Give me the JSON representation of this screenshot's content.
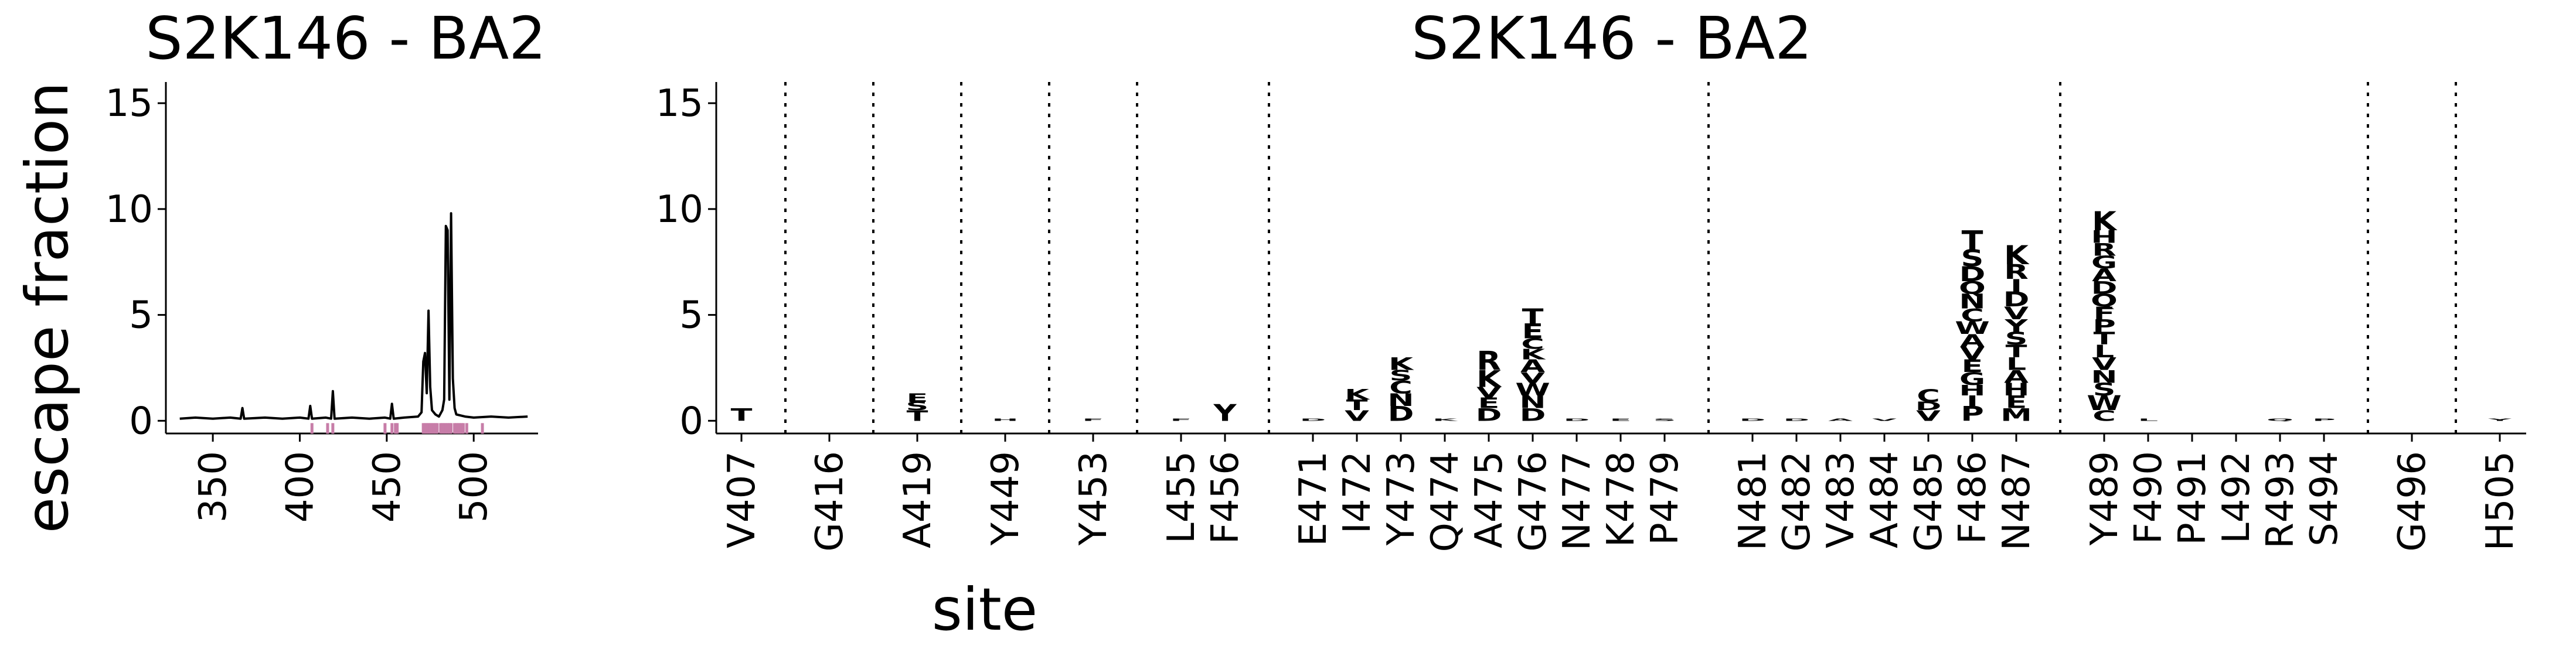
{
  "chart_data": [
    {
      "type": "line",
      "title": "S2K146 - BA2",
      "ylabel": "escape fraction",
      "xlabel": "",
      "xlim": [
        323,
        537
      ],
      "ylim": [
        -0.6,
        16
      ],
      "xticks": [
        350,
        400,
        450,
        500
      ],
      "yticks": [
        0,
        5,
        10,
        15
      ],
      "grid": false,
      "line_color": "#000000",
      "highlight_color": "#c77da8",
      "series": [
        {
          "points": [
            [
              331,
              0.1
            ],
            [
              340,
              0.15
            ],
            [
              350,
              0.1
            ],
            [
              360,
              0.15
            ],
            [
              366,
              0.1
            ],
            [
              367,
              0.6
            ],
            [
              368,
              0.1
            ],
            [
              380,
              0.15
            ],
            [
              390,
              0.1
            ],
            [
              400,
              0.15
            ],
            [
              405,
              0.1
            ],
            [
              406,
              0.7
            ],
            [
              407,
              0.1
            ],
            [
              415,
              0.15
            ],
            [
              418,
              0.1
            ],
            [
              419,
              1.4
            ],
            [
              420,
              0.1
            ],
            [
              430,
              0.15
            ],
            [
              440,
              0.1
            ],
            [
              449,
              0.15
            ],
            [
              452,
              0.1
            ],
            [
              453,
              0.8
            ],
            [
              454,
              0.1
            ],
            [
              460,
              0.15
            ],
            [
              468,
              0.2
            ],
            [
              470,
              0.4
            ],
            [
              471,
              2.8
            ],
            [
              472,
              3.2
            ],
            [
              473,
              1.3
            ],
            [
              474,
              5.2
            ],
            [
              475,
              1.6
            ],
            [
              476,
              0.5
            ],
            [
              478,
              0.3
            ],
            [
              480,
              0.2
            ],
            [
              482,
              0.5
            ],
            [
              483,
              1.0
            ],
            [
              484,
              9.2
            ],
            [
              485,
              9.0
            ],
            [
              486,
              1.0
            ],
            [
              487,
              9.8
            ],
            [
              488,
              2.0
            ],
            [
              489,
              0.6
            ],
            [
              490,
              0.3
            ],
            [
              495,
              0.2
            ],
            [
              500,
              0.15
            ],
            [
              510,
              0.2
            ],
            [
              520,
              0.15
            ],
            [
              531,
              0.2
            ]
          ]
        }
      ],
      "highlighted_sites": [
        407,
        416,
        419,
        449,
        453,
        455,
        456,
        471,
        472,
        473,
        474,
        475,
        476,
        477,
        478,
        479,
        481,
        482,
        483,
        484,
        485,
        486,
        487,
        489,
        490,
        491,
        492,
        493,
        494,
        496,
        505
      ]
    },
    {
      "type": "logo",
      "title": "S2K146 - BA2",
      "xlabel": "site",
      "ylabel": "",
      "ylim": [
        -0.6,
        16
      ],
      "yticks": [
        0,
        5,
        10,
        15
      ],
      "grid": false,
      "categories": [
        "V407",
        "G416",
        "A419",
        "Y449",
        "Y453",
        "L455",
        "F456",
        "E471",
        "I472",
        "Y473",
        "Q474",
        "A475",
        "G476",
        "N477",
        "K478",
        "P479",
        "N481",
        "G482",
        "V483",
        "A484",
        "G485",
        "F486",
        "N487",
        "Y489",
        "F490",
        "P491",
        "L492",
        "R493",
        "S494",
        "G496",
        "H505"
      ],
      "separators_after": [
        "V407",
        "G416",
        "A419",
        "Y449",
        "Y453",
        "F456",
        "P479",
        "N487",
        "S494",
        "G496"
      ],
      "stacks": [
        {
          "site": "V407",
          "total": 0.6,
          "letters": [
            {
              "aa": "T",
              "h": 0.6,
              "color": "#fde3a0"
            }
          ]
        },
        {
          "site": "G416",
          "total": 0.0,
          "letters": []
        },
        {
          "site": "A419",
          "total": 1.3,
          "letters": [
            {
              "aa": "T",
              "h": 0.5,
              "color": "#fde3a0"
            },
            {
              "aa": "S",
              "h": 0.4,
              "color": "#fde3a0"
            },
            {
              "aa": "E",
              "h": 0.4,
              "color": "#fde3a0"
            }
          ]
        },
        {
          "site": "Y449",
          "total": 0.1,
          "letters": [
            {
              "aa": "H",
              "h": 0.1,
              "color": "#fde3a0"
            }
          ]
        },
        {
          "site": "Y453",
          "total": 0.1,
          "letters": [
            {
              "aa": "F",
              "h": 0.1,
              "color": "#e88a4a"
            }
          ]
        },
        {
          "site": "L455",
          "total": 0.1,
          "letters": [
            {
              "aa": "F",
              "h": 0.1,
              "color": "#f7c78a"
            }
          ]
        },
        {
          "site": "F456",
          "total": 0.8,
          "letters": [
            {
              "aa": "Y",
              "h": 0.8,
              "color": "#fde3a0"
            }
          ]
        },
        {
          "site": "E471",
          "total": 0.1,
          "letters": [
            {
              "aa": "D",
              "h": 0.1,
              "color": "#fde3a0"
            }
          ]
        },
        {
          "site": "I472",
          "total": 1.5,
          "letters": [
            {
              "aa": "V",
              "h": 0.5,
              "color": "#fde3a0"
            },
            {
              "aa": "T",
              "h": 0.5,
              "color": "#fde3a0"
            },
            {
              "aa": "K",
              "h": 0.5,
              "color": "#fde3a0"
            }
          ]
        },
        {
          "site": "Y473",
          "total": 3.0,
          "letters": [
            {
              "aa": "D",
              "h": 0.7,
              "color": "#fde3a0"
            },
            {
              "aa": "N",
              "h": 0.6,
              "color": "#fde3a0"
            },
            {
              "aa": "C",
              "h": 0.6,
              "color": "#fde3a0"
            },
            {
              "aa": "S",
              "h": 0.5,
              "color": "#fde3a0"
            },
            {
              "aa": "K",
              "h": 0.6,
              "color": "#fde3a0"
            }
          ]
        },
        {
          "site": "Q474",
          "total": 0.1,
          "letters": [
            {
              "aa": "K",
              "h": 0.1,
              "color": "#b2400f"
            }
          ]
        },
        {
          "site": "A475",
          "total": 3.3,
          "letters": [
            {
              "aa": "D",
              "h": 0.6,
              "color": "#fde3a0"
            },
            {
              "aa": "E",
              "h": 0.5,
              "color": "#fde3a0"
            },
            {
              "aa": "V",
              "h": 0.5,
              "color": "#fde3a0"
            },
            {
              "aa": "K",
              "h": 0.8,
              "color": "#e8832f"
            },
            {
              "aa": "R",
              "h": 0.9,
              "color": "#e8832f"
            }
          ]
        },
        {
          "site": "G476",
          "total": 5.3,
          "letters": [
            {
              "aa": "D",
              "h": 0.6,
              "color": "#fde3a0"
            },
            {
              "aa": "N",
              "h": 0.6,
              "color": "#fde3a0"
            },
            {
              "aa": "W",
              "h": 0.6,
              "color": "#fde3a0"
            },
            {
              "aa": "V",
              "h": 0.5,
              "color": "#fde3a0"
            },
            {
              "aa": "A",
              "h": 0.6,
              "color": "#fde3a0"
            },
            {
              "aa": "K",
              "h": 0.5,
              "color": "#fde3a0"
            },
            {
              "aa": "C",
              "h": 0.5,
              "color": "#fde3a0"
            },
            {
              "aa": "E",
              "h": 0.7,
              "color": "#fde3a0"
            },
            {
              "aa": "T",
              "h": 0.7,
              "color": "#f7c77a"
            }
          ]
        },
        {
          "site": "N477",
          "total": 0.1,
          "letters": [
            {
              "aa": "D",
              "h": 0.1,
              "color": "#e8a06a"
            }
          ]
        },
        {
          "site": "K478",
          "total": 0.1,
          "letters": [
            {
              "aa": "E",
              "h": 0.1,
              "color": "#e8a06a"
            }
          ]
        },
        {
          "site": "P479",
          "total": 0.1,
          "letters": [
            {
              "aa": "S",
              "h": 0.1,
              "color": "#e8a06a"
            }
          ]
        },
        {
          "site": "N481",
          "total": 0.1,
          "letters": [
            {
              "aa": "D",
              "h": 0.1,
              "color": "#fde3a0"
            }
          ]
        },
        {
          "site": "G482",
          "total": 0.1,
          "letters": [
            {
              "aa": "D",
              "h": 0.1,
              "color": "#b2400f"
            }
          ]
        },
        {
          "site": "V483",
          "total": 0.1,
          "letters": [
            {
              "aa": "A",
              "h": 0.1,
              "color": "#fde3a0"
            }
          ]
        },
        {
          "site": "A484",
          "total": 0.1,
          "letters": [
            {
              "aa": "V",
              "h": 0.1,
              "color": "#b2400f"
            }
          ]
        },
        {
          "site": "G485",
          "total": 1.5,
          "letters": [
            {
              "aa": "V",
              "h": 0.5,
              "color": "#fde3a0"
            },
            {
              "aa": "D",
              "h": 0.4,
              "color": "#fde3a0"
            },
            {
              "aa": "C",
              "h": 0.6,
              "color": "#f7c77a"
            }
          ]
        },
        {
          "site": "F486",
          "total": 9.3,
          "letters": [
            {
              "aa": "P",
              "h": 0.7,
              "color": "#8b3a0f"
            },
            {
              "aa": "I",
              "h": 0.5,
              "color": "#b2400f"
            },
            {
              "aa": "H",
              "h": 0.5,
              "color": "#c25a1a"
            },
            {
              "aa": "G",
              "h": 0.6,
              "color": "#e8832f"
            },
            {
              "aa": "E",
              "h": 0.6,
              "color": "#d06620"
            },
            {
              "aa": "V",
              "h": 0.6,
              "color": "#e8832f"
            },
            {
              "aa": "A",
              "h": 0.6,
              "color": "#e8832f"
            },
            {
              "aa": "W",
              "h": 0.6,
              "color": "#c25a1a"
            },
            {
              "aa": "C",
              "h": 0.6,
              "color": "#e8a06a"
            },
            {
              "aa": "N",
              "h": 0.7,
              "color": "#e8832f"
            },
            {
              "aa": "Q",
              "h": 0.6,
              "color": "#f7c78a"
            },
            {
              "aa": "D",
              "h": 0.7,
              "color": "#e8832f"
            },
            {
              "aa": "S",
              "h": 0.8,
              "color": "#d06620"
            },
            {
              "aa": "T",
              "h": 0.9,
              "color": "#c25a1a"
            }
          ]
        },
        {
          "site": "N487",
          "total": 8.4,
          "letters": [
            {
              "aa": "M",
              "h": 0.6,
              "color": "#fde3a0"
            },
            {
              "aa": "E",
              "h": 0.6,
              "color": "#fde3a0"
            },
            {
              "aa": "H",
              "h": 0.6,
              "color": "#fde3a0"
            },
            {
              "aa": "A",
              "h": 0.6,
              "color": "#fde3a0"
            },
            {
              "aa": "L",
              "h": 0.6,
              "color": "#fde3a0"
            },
            {
              "aa": "T",
              "h": 0.6,
              "color": "#fde3a0"
            },
            {
              "aa": "S",
              "h": 0.6,
              "color": "#f7c77a"
            },
            {
              "aa": "Y",
              "h": 0.6,
              "color": "#f7c77a"
            },
            {
              "aa": "V",
              "h": 0.6,
              "color": "#f7c77a"
            },
            {
              "aa": "D",
              "h": 0.7,
              "color": "#f7c77a"
            },
            {
              "aa": "I",
              "h": 0.6,
              "color": "#fde3a0"
            },
            {
              "aa": "R",
              "h": 0.7,
              "color": "#f7c77a"
            },
            {
              "aa": "K",
              "h": 0.9,
              "color": "#fde3a0"
            }
          ]
        },
        {
          "site": "Y489",
          "total": 9.9,
          "letters": [
            {
              "aa": "C",
              "h": 0.5,
              "color": "#fde3a0"
            },
            {
              "aa": "W",
              "h": 0.7,
              "color": "#f7c77a"
            },
            {
              "aa": "S",
              "h": 0.6,
              "color": "#fde3a0"
            },
            {
              "aa": "N",
              "h": 0.6,
              "color": "#fde3a0"
            },
            {
              "aa": "V",
              "h": 0.6,
              "color": "#fde3a0"
            },
            {
              "aa": "L",
              "h": 0.6,
              "color": "#fde3a0"
            },
            {
              "aa": "T",
              "h": 0.6,
              "color": "#fde3a0"
            },
            {
              "aa": "P",
              "h": 0.6,
              "color": "#fde3a0"
            },
            {
              "aa": "F",
              "h": 0.6,
              "color": "#fde3a0"
            },
            {
              "aa": "Q",
              "h": 0.6,
              "color": "#fde3a0"
            },
            {
              "aa": "D",
              "h": 0.6,
              "color": "#fde3a0"
            },
            {
              "aa": "A",
              "h": 0.6,
              "color": "#fde3a0"
            },
            {
              "aa": "G",
              "h": 0.6,
              "color": "#fde3a0"
            },
            {
              "aa": "R",
              "h": 0.6,
              "color": "#fde3a0"
            },
            {
              "aa": "H",
              "h": 0.6,
              "color": "#fde3a0"
            },
            {
              "aa": "K",
              "h": 0.9,
              "color": "#fde3a0"
            }
          ]
        },
        {
          "site": "F490",
          "total": 0.1,
          "letters": [
            {
              "aa": "L",
              "h": 0.1,
              "color": "#fde3a0"
            }
          ]
        },
        {
          "site": "P491",
          "total": 0.0,
          "letters": []
        },
        {
          "site": "L492",
          "total": 0.0,
          "letters": []
        },
        {
          "site": "R493",
          "total": 0.1,
          "letters": [
            {
              "aa": "Q",
              "h": 0.1,
              "color": "#f7c78a"
            }
          ]
        },
        {
          "site": "S494",
          "total": 0.1,
          "letters": [
            {
              "aa": "P",
              "h": 0.1,
              "color": "#f7c78a"
            }
          ]
        },
        {
          "site": "G496",
          "total": 0.0,
          "letters": []
        },
        {
          "site": "H505",
          "total": 0.1,
          "letters": [
            {
              "aa": "Y",
              "h": 0.1,
              "color": "#fde3a0"
            }
          ]
        }
      ]
    }
  ]
}
